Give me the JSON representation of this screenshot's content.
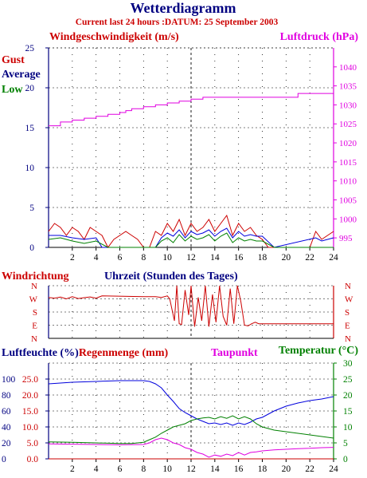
{
  "header": {
    "title": "Wetterdiagramm",
    "subtitle": "Current last 24 hours :DATUM: 25 September 2003"
  },
  "colors": {
    "navy": "#000080",
    "red": "#cc0000",
    "magenta": "#e000e0",
    "green": "#008000",
    "blue": "#0000dd"
  },
  "chart_data": [
    {
      "type": "line",
      "id": "wind-pressure",
      "title": "Windgeschwindigkeit (m/s)",
      "right_title": "Luftdruck (hPa)",
      "legend": [
        "Gust",
        "Average",
        "Low"
      ],
      "xlim": [
        0,
        24
      ],
      "ylim": [
        0,
        25
      ],
      "y2lim": [
        992.5,
        1045
      ],
      "x_ticks": [
        "2",
        "4",
        "6",
        "8",
        "10",
        "12",
        "14",
        "16",
        "18",
        "20",
        "22",
        "24"
      ],
      "y_ticks": [
        "0",
        "5",
        "10",
        "15",
        "20",
        "25"
      ],
      "y2_ticks": [
        "995",
        "1000",
        "1005",
        "1010",
        "1015",
        "1020",
        "1025",
        "1030",
        "1035",
        "1040"
      ],
      "grid": true,
      "series": [
        {
          "name": "Luftdruck",
          "axis": "right",
          "step": true,
          "x": [
            0,
            1,
            2,
            3,
            4,
            5,
            6,
            6.5,
            7,
            8,
            9,
            10,
            11,
            12,
            13,
            15,
            18,
            20,
            21,
            24
          ],
          "y": [
            1024.5,
            1025.5,
            1026,
            1026.5,
            1027,
            1027.5,
            1028,
            1028.5,
            1029,
            1029.5,
            1030,
            1030.5,
            1031,
            1031.5,
            1032,
            1032,
            1032,
            1032,
            1033,
            1033
          ]
        },
        {
          "name": "Gust",
          "axis": "left",
          "x": [
            0,
            0.5,
            1,
            1.5,
            2,
            2.5,
            3,
            3.5,
            4,
            4.5,
            5,
            5.5,
            6,
            6.5,
            7,
            7.5,
            8,
            8.5,
            9,
            9.5,
            10,
            10.5,
            11,
            11.5,
            12,
            12.5,
            13,
            13.5,
            14,
            14.5,
            15,
            15.5,
            16,
            16.5,
            17,
            17.5,
            18,
            18.5,
            19,
            20,
            21,
            22,
            22.5,
            23,
            23.5,
            24
          ],
          "y": [
            2,
            3,
            2.5,
            1.5,
            2.5,
            2,
            1,
            2.5,
            2,
            1.5,
            0,
            1,
            1.5,
            2,
            1.5,
            1,
            0,
            0,
            2,
            1.5,
            3,
            2,
            3.5,
            1.5,
            3,
            2,
            2.5,
            3.5,
            2,
            3,
            4,
            1.5,
            3,
            2,
            2.5,
            1.5,
            1,
            0,
            0,
            0,
            0,
            0,
            2,
            1,
            1.5,
            2
          ]
        },
        {
          "name": "Average",
          "axis": "left",
          "x": [
            0,
            1,
            2,
            3,
            4,
            4.5,
            5,
            6,
            7,
            8,
            9,
            9.5,
            10,
            10.5,
            11,
            11.5,
            12,
            12.5,
            13,
            13.5,
            14,
            14.5,
            15,
            15.5,
            16,
            16.5,
            17,
            17.5,
            18,
            19,
            22.5,
            23,
            23.5,
            24
          ],
          "y": [
            1.5,
            1.5,
            1.2,
            1,
            1.2,
            0,
            0,
            0,
            0,
            0,
            0,
            1.2,
            1.8,
            1.4,
            2.2,
            1.2,
            2,
            1.6,
            1.8,
            2.2,
            1.4,
            2,
            2.4,
            1.2,
            2,
            1.4,
            1.6,
            1.4,
            1.4,
            0,
            1.2,
            0.8,
            1,
            1.2
          ]
        },
        {
          "name": "Low",
          "axis": "left",
          "x": [
            0,
            1,
            2,
            3,
            4,
            5,
            6,
            7,
            8,
            9,
            9.5,
            10,
            10.5,
            11,
            11.5,
            12,
            12.5,
            13,
            13.5,
            14,
            14.5,
            15,
            15.5,
            16,
            16.5,
            17,
            17.5,
            18,
            19,
            24
          ],
          "y": [
            1,
            1.2,
            0.8,
            0.5,
            0.8,
            0,
            0,
            0,
            0,
            0,
            0.8,
            1.2,
            0.6,
            1.6,
            0.8,
            1.4,
            1,
            1.2,
            1.6,
            0.8,
            1.4,
            1.8,
            0.6,
            1.2,
            0.8,
            1,
            0.8,
            0.8,
            0,
            0
          ]
        }
      ]
    },
    {
      "type": "line",
      "id": "wind-direction",
      "title": "Windrichtung",
      "xlabel": "Uhrzeit (Stunden des Tages)",
      "xlim": [
        0,
        24
      ],
      "y_ticks": [
        "N",
        "W",
        "S",
        "E",
        "N"
      ],
      "grid": true,
      "series": [
        {
          "name": "Windrichtung",
          "units": "degrees",
          "x": [
            0,
            0.5,
            1,
            1.5,
            2,
            2.5,
            3,
            3.5,
            4,
            4.5,
            8,
            9,
            9.5,
            10,
            10.2,
            10.6,
            10.8,
            11,
            11.2,
            11.5,
            11.8,
            12,
            12.3,
            12.6,
            12.9,
            13.2,
            13.5,
            13.8,
            14.1,
            14.4,
            14.7,
            15,
            15.3,
            15.6,
            15.9,
            16.2,
            16.5,
            16.8,
            17.1,
            17.4,
            17.7,
            18,
            24
          ],
          "y": [
            280,
            275,
            282,
            270,
            285,
            272,
            278,
            283,
            275,
            290,
            285,
            285,
            280,
            290,
            270,
            120,
            360,
            100,
            95,
            330,
            160,
            360,
            80,
            280,
            120,
            360,
            80,
            300,
            110,
            360,
            150,
            90,
            340,
            100,
            360,
            250,
            90,
            85,
            100,
            110,
            100,
            100,
            100
          ]
        }
      ]
    },
    {
      "type": "line",
      "id": "humidity-rain-temp",
      "legend": [
        "Luftfeuchte (%)",
        "Regenmenge (mm)",
        "Taupunkt",
        "Temperatur (°C)"
      ],
      "xlim": [
        0,
        24
      ],
      "ylim_humidity": [
        0,
        120
      ],
      "ylim_rain": [
        0,
        30
      ],
      "ylim_temp": [
        0,
        30
      ],
      "x_ticks": [
        "2",
        "4",
        "6",
        "8",
        "10",
        "12",
        "14",
        "16",
        "18",
        "20",
        "22",
        "24"
      ],
      "y_ticks_humidity": [
        "0",
        "20",
        "40",
        "60",
        "80",
        "100"
      ],
      "y_ticks_rain": [
        "0.0",
        "5.0",
        "10.0",
        "15.0",
        "20.0",
        "25.0"
      ],
      "y_ticks_temp": [
        "0",
        "5",
        "10",
        "15",
        "20",
        "25",
        "30"
      ],
      "grid": true,
      "series": [
        {
          "name": "Luftfeuchte",
          "axis": "humidity",
          "x": [
            0,
            2,
            4,
            6,
            8,
            8.5,
            9,
            9.5,
            10,
            10.5,
            11,
            11.5,
            12,
            12.5,
            13,
            13.5,
            14,
            14.5,
            15,
            15.5,
            16,
            16.5,
            17,
            17.5,
            18,
            19,
            20,
            21,
            22,
            23,
            24
          ],
          "y": [
            94,
            96,
            97,
            98,
            98,
            97,
            94,
            89,
            80,
            72,
            63,
            58,
            54,
            50,
            47,
            44,
            45,
            43,
            45,
            42,
            45,
            43,
            46,
            50,
            52,
            60,
            66,
            70,
            73,
            75,
            78
          ]
        },
        {
          "name": "Temperatur",
          "axis": "temp",
          "x": [
            0,
            2,
            4,
            6,
            7,
            8,
            8.5,
            9,
            9.5,
            10,
            10.5,
            11,
            11.5,
            12,
            12.5,
            13,
            13.5,
            14,
            14.5,
            15,
            15.5,
            16,
            16.5,
            17,
            17.5,
            18,
            19,
            20,
            21,
            22,
            23,
            24
          ],
          "y": [
            5.3,
            5.2,
            5,
            4.8,
            4.8,
            5.2,
            6,
            6.8,
            8,
            9,
            10,
            10.5,
            11,
            12,
            12.5,
            12.8,
            13,
            12.5,
            13.2,
            12.7,
            13.5,
            12.5,
            13.2,
            12.5,
            11,
            10,
            9,
            8.5,
            8,
            7.5,
            7,
            6.5
          ]
        },
        {
          "name": "Taupunkt",
          "axis": "temp",
          "x": [
            0,
            2,
            4,
            6,
            8,
            8.5,
            9,
            9.5,
            10,
            10.5,
            11,
            11.5,
            12,
            12.5,
            13,
            13.5,
            14,
            14.5,
            15,
            15.5,
            16,
            16.5,
            17,
            17.5,
            18,
            19,
            20,
            21,
            22,
            23,
            24
          ],
          "y": [
            4.7,
            4.6,
            4.5,
            4.4,
            4.5,
            5,
            6,
            6.5,
            6,
            5,
            4.5,
            3.5,
            3,
            2,
            1.5,
            0.5,
            1.2,
            0.8,
            1.5,
            1,
            2,
            1.2,
            2,
            2.2,
            2.5,
            2.8,
            3,
            3.2,
            3.3,
            3.5,
            3.6
          ]
        },
        {
          "name": "Regenmenge",
          "axis": "rain",
          "x": [
            0,
            24
          ],
          "y": [
            0,
            0
          ]
        }
      ]
    }
  ]
}
